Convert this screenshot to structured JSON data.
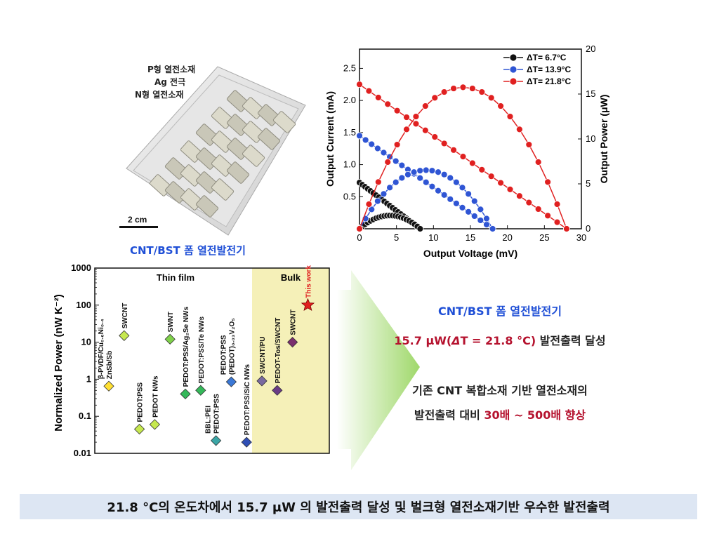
{
  "photo": {
    "labels": [
      "P형 열전소재",
      "Ag 전극",
      "N형 열전소재"
    ],
    "scale": "2 cm",
    "caption": "CNT/BST 폼 열전발전기"
  },
  "chart_data": [
    {
      "type": "line",
      "xlabel": "Output Voltage (mV)",
      "ylabel": "Output Current (mA)",
      "y2label": "Output Power (μW)",
      "xlim": [
        0,
        30
      ],
      "ylim": [
        0,
        2.8
      ],
      "y2lim": [
        0,
        20
      ],
      "xticks": [
        "0",
        "5",
        "10",
        "15",
        "20",
        "25",
        "30"
      ],
      "yticks": [
        "0.5",
        "1.0",
        "1.5",
        "2.0",
        "2.5"
      ],
      "y2ticks": [
        "0",
        "5",
        "10",
        "15",
        "20"
      ],
      "legend_position": "top-right",
      "series": [
        {
          "name": "ΔT= 6.7°C",
          "color": "#111111",
          "Voc": 8.2,
          "Isc": 0.72
        },
        {
          "name": "ΔT= 13.9°C",
          "color": "#2f55d4",
          "Voc": 18.0,
          "Isc": 1.45
        },
        {
          "name": "ΔT= 21.8°C",
          "color": "#e02020",
          "Voc": 28.0,
          "Isc": 2.25
        }
      ]
    },
    {
      "type": "scatter",
      "ylabel": "Normalized Power (nW K⁻²)",
      "yscale": "log",
      "ylim": [
        0.01,
        1000
      ],
      "yticks": [
        "0.01",
        "0.1",
        "1",
        "10",
        "100",
        "1000"
      ],
      "regions": [
        "Thin film",
        "Bulk"
      ],
      "points": [
        {
          "label": "ZnSb/Sb",
          "label2": "β-PVDF/Cu₀.₆Ni₀.₄",
          "value": 0.65,
          "color": "#ffe033",
          "x": 1
        },
        {
          "label": "SWCNT",
          "value": 15,
          "color": "#c6e84f",
          "x": 2
        },
        {
          "label": "PEDOT:PSS",
          "value": 0.045,
          "color": "#c6e84f",
          "x": 3
        },
        {
          "label": "PEDOT NWs",
          "value": 0.06,
          "color": "#c6e84f",
          "x": 4
        },
        {
          "label": "SWNT",
          "value": 12,
          "color": "#7fd14a",
          "x": 5
        },
        {
          "label": "PEDOT:PSS/Ag₂Se NWs",
          "value": 0.4,
          "color": "#35b85a",
          "x": 6
        },
        {
          "label": "PEDOT:PSS/Te NWs",
          "value": 0.5,
          "color": "#35b85a",
          "x": 7
        },
        {
          "label": "PEDOT:PSS",
          "label2": "BBL:PEI",
          "value": 0.022,
          "color": "#3ba6a6",
          "x": 8
        },
        {
          "label": "(PEDOT)₀.₀₃V₂O₅",
          "label2": "PEDOT:PSS",
          "value": 0.85,
          "color": "#3b78d6",
          "x": 9
        },
        {
          "label": "PEDOT:PSS/SiC NWs",
          "value": 0.02,
          "color": "#2f4fb5",
          "x": 10
        },
        {
          "label": "SWCNT/PU",
          "value": 0.9,
          "color": "#7a6aa0",
          "x": 11
        },
        {
          "label": "PEDOT-Tos/SWCNT",
          "value": 0.5,
          "color": "#6a3c86",
          "x": 12
        },
        {
          "label": "SWCNT",
          "value": 10,
          "color": "#7a2f6e",
          "x": 13
        },
        {
          "label": "This work",
          "value": 100,
          "color": "#e02020",
          "x": 14,
          "marker": "star"
        }
      ]
    }
  ],
  "summary": {
    "title": "CNT/BST 폼 열전발전기",
    "result_prefix": "15.7 μW(",
    "result_delta": "Δ",
    "result_mid": "T = 21.8 °C)",
    "result_suffix": " 발전출력 달성",
    "line3": "기존 CNT 복합소재 기반 열전소재의",
    "line4_prefix": "발전출력 대비 ",
    "line4_highlight": "30배 ~ 500배 향상"
  },
  "banner": "21.8 °C의 온도차에서 15.7 μW 의 발전출력 달성 및 벌크형 열전소재기반 우수한 발전출력"
}
